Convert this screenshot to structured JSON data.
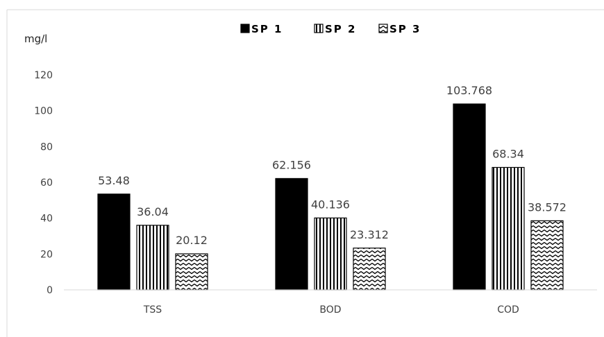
{
  "chart_data": {
    "type": "bar",
    "ylabel": "mg/l",
    "ylim": [
      0,
      120
    ],
    "yticks": [
      0,
      20,
      40,
      60,
      80,
      100,
      120
    ],
    "categories": [
      "TSS",
      "BOD",
      "COD"
    ],
    "series": [
      {
        "name": "SP 1",
        "values": [
          53.48,
          62.156,
          103.768
        ],
        "labels": [
          "53.48",
          "62.156",
          "103.768"
        ],
        "pattern": "solid-black"
      },
      {
        "name": "SP 2",
        "values": [
          36.04,
          40.136,
          68.34
        ],
        "labels": [
          "36.04",
          "40.136",
          "68.34"
        ],
        "pattern": "vertical-stripes"
      },
      {
        "name": "SP 3",
        "values": [
          20.12,
          23.312,
          38.572
        ],
        "labels": [
          "20.12",
          "23.312",
          "38.572"
        ],
        "pattern": "zigzag"
      }
    ],
    "legend_position": "top-center",
    "grid": false
  }
}
